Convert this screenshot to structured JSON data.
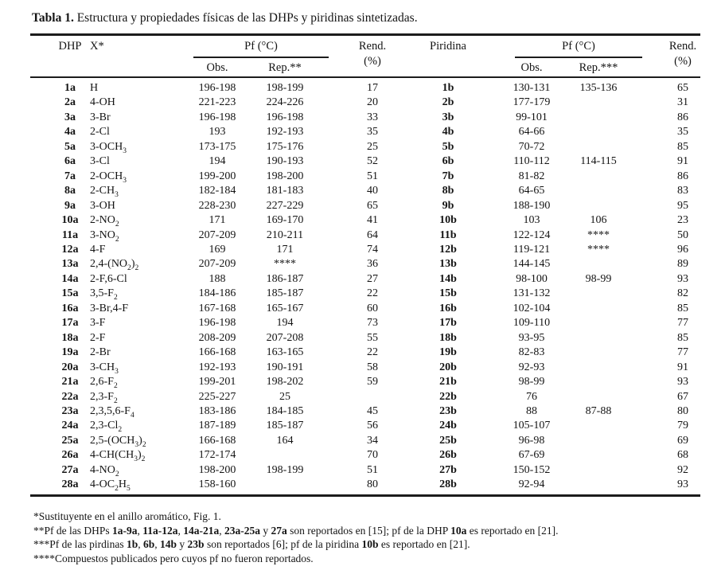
{
  "title": {
    "label": "Tabla 1.",
    "text": " Estructura y propiedades físicas de las DHPs y piridinas sintetizadas."
  },
  "header": {
    "dhp": "DHP",
    "x": "X*",
    "pf": "Pf (°C)",
    "rend": "Rend.",
    "pct": "(%)",
    "piridina": "Piridina",
    "obs": "Obs.",
    "rep_dhp": "Rep.**",
    "rep_pyr": "Rep.***"
  },
  "rows": [
    {
      "dhp": "1a",
      "x": "H",
      "obs": "196-198",
      "rep": "198-199",
      "rend": "17",
      "pyr": "1b",
      "pyr_obs": "130-131",
      "pyr_rep": "135-136",
      "pyr_rend": "65"
    },
    {
      "dhp": "2a",
      "x": "4-OH",
      "obs": "221-223",
      "rep": "224-226",
      "rend": "20",
      "pyr": "2b",
      "pyr_obs": "177-179",
      "pyr_rep": "",
      "pyr_rend": "31"
    },
    {
      "dhp": "3a",
      "x": "3-Br",
      "obs": "196-198",
      "rep": "196-198",
      "rend": "33",
      "pyr": "3b",
      "pyr_obs": "99-101",
      "pyr_rep": "",
      "pyr_rend": "86"
    },
    {
      "dhp": "4a",
      "x": "2-Cl",
      "obs": "193",
      "rep": "192-193",
      "rend": "35",
      "pyr": "4b",
      "pyr_obs": "64-66",
      "pyr_rep": "",
      "pyr_rend": "35"
    },
    {
      "dhp": "5a",
      "x": "3-OCH_3_",
      "obs": "173-175",
      "rep": "175-176",
      "rend": "25",
      "pyr": "5b",
      "pyr_obs": "70-72",
      "pyr_rep": "",
      "pyr_rend": "85"
    },
    {
      "dhp": "6a",
      "x": "3-Cl",
      "obs": "194",
      "rep": "190-193",
      "rend": "52",
      "pyr": "6b",
      "pyr_obs": "110-112",
      "pyr_rep": "114-115",
      "pyr_rend": "91"
    },
    {
      "dhp": "7a",
      "x": "2-OCH_3_",
      "obs": "199-200",
      "rep": "198-200",
      "rend": "51",
      "pyr": "7b",
      "pyr_obs": "81-82",
      "pyr_rep": "",
      "pyr_rend": "86"
    },
    {
      "dhp": "8a",
      "x": "2-CH_3_",
      "obs": "182-184",
      "rep": "181-183",
      "rend": "40",
      "pyr": "8b",
      "pyr_obs": "64-65",
      "pyr_rep": "",
      "pyr_rend": "83"
    },
    {
      "dhp": "9a",
      "x": "3-OH",
      "obs": "228-230",
      "rep": "227-229",
      "rend": "65",
      "pyr": "9b",
      "pyr_obs": "188-190",
      "pyr_rep": "",
      "pyr_rend": "95"
    },
    {
      "dhp": "10a",
      "x": "2-NO_2_",
      "obs": "171",
      "rep": "169-170",
      "rend": "41",
      "pyr": "10b",
      "pyr_obs": "103",
      "pyr_rep": "106",
      "pyr_rend": "23"
    },
    {
      "dhp": "11a",
      "x": "3-NO_2_",
      "obs": "207-209",
      "rep": "210-211",
      "rend": "64",
      "pyr": "11b",
      "pyr_obs": "122-124",
      "pyr_rep": "****",
      "pyr_rend": "50"
    },
    {
      "dhp": "12a",
      "x": "4-F",
      "obs": "169",
      "rep": "171",
      "rend": "74",
      "pyr": "12b",
      "pyr_obs": "119-121",
      "pyr_rep": "****",
      "pyr_rend": "96"
    },
    {
      "dhp": "13a",
      "x": "2,4-(NO_2_)_2_",
      "obs": "207-209",
      "rep": "****",
      "rend": "36",
      "pyr": "13b",
      "pyr_obs": "144-145",
      "pyr_rep": "",
      "pyr_rend": "89"
    },
    {
      "dhp": "14a",
      "x": "2-F,6-Cl",
      "obs": "188",
      "rep": "186-187",
      "rend": "27",
      "pyr": "14b",
      "pyr_obs": "98-100",
      "pyr_rep": "98-99",
      "pyr_rend": "93"
    },
    {
      "dhp": "15a",
      "x": "3,5-F_2_",
      "obs": "184-186",
      "rep": "185-187",
      "rend": "22",
      "pyr": "15b",
      "pyr_obs": "131-132",
      "pyr_rep": "",
      "pyr_rend": "82"
    },
    {
      "dhp": "16a",
      "x": "3-Br,4-F",
      "obs": "167-168",
      "rep": "165-167",
      "rend": "60",
      "pyr": "16b",
      "pyr_obs": "102-104",
      "pyr_rep": "",
      "pyr_rend": "85"
    },
    {
      "dhp": "17a",
      "x": "3-F",
      "obs": "196-198",
      "rep": "194",
      "rend": "73",
      "pyr": "17b",
      "pyr_obs": "109-110",
      "pyr_rep": "",
      "pyr_rend": "77"
    },
    {
      "dhp": "18a",
      "x": "2-F",
      "obs": "208-209",
      "rep": "207-208",
      "rend": "55",
      "pyr": "18b",
      "pyr_obs": "93-95",
      "pyr_rep": "",
      "pyr_rend": "85"
    },
    {
      "dhp": "19a",
      "x": "2-Br",
      "obs": "166-168",
      "rep": "163-165",
      "rend": "22",
      "pyr": "19b",
      "pyr_obs": "82-83",
      "pyr_rep": "",
      "pyr_rend": "77"
    },
    {
      "dhp": "20a",
      "x": "3-CH_3_",
      "obs": "192-193",
      "rep": "190-191",
      "rend": "58",
      "pyr": "20b",
      "pyr_obs": "92-93",
      "pyr_rep": "",
      "pyr_rend": "91"
    },
    {
      "dhp": "21a",
      "x": "2,6-F_2_",
      "obs": "199-201",
      "rep": "198-202",
      "rend": "59",
      "pyr": "21b",
      "pyr_obs": "98-99",
      "pyr_rep": "",
      "pyr_rend": "93"
    },
    {
      "dhp": "22a",
      "x": "2,3-F_2_",
      "obs": "225-227",
      "rep": "25",
      "rend": "",
      "pyr": "22b",
      "pyr_obs": "76",
      "pyr_rep": "",
      "pyr_rend": "67"
    },
    {
      "dhp": "23a",
      "x": "2,3,5,6-F_4_",
      "obs": "183-186",
      "rep": "184-185",
      "rend": "45",
      "pyr": "23b",
      "pyr_obs": "88",
      "pyr_rep": "87-88",
      "pyr_rend": "80"
    },
    {
      "dhp": "24a",
      "x": "2,3-Cl_2_",
      "obs": "187-189",
      "rep": "185-187",
      "rend": "56",
      "pyr": "24b",
      "pyr_obs": "105-107",
      "pyr_rep": "",
      "pyr_rend": "79"
    },
    {
      "dhp": "25a",
      "x": "2,5-(OCH_3_)_2_",
      "obs": "166-168",
      "rep": "164",
      "rend": "34",
      "pyr": "25b",
      "pyr_obs": "96-98",
      "pyr_rep": "",
      "pyr_rend": "69"
    },
    {
      "dhp": "26a",
      "x": "4-CH(CH_3_)_2_",
      "obs": "172-174",
      "rep": "",
      "rend": "70",
      "pyr": "26b",
      "pyr_obs": "67-69",
      "pyr_rep": "",
      "pyr_rend": "68"
    },
    {
      "dhp": "27a",
      "x": "4-NO_2_",
      "obs": "198-200",
      "rep": "198-199",
      "rend": "51",
      "pyr": "27b",
      "pyr_obs": "150-152",
      "pyr_rep": "",
      "pyr_rend": "92"
    },
    {
      "dhp": "28a",
      "x": "4-OC_2_H_5_",
      "obs": "158-160",
      "rep": "",
      "rend": "80",
      "pyr": "28b",
      "pyr_obs": "92-94",
      "pyr_rep": "",
      "pyr_rend": "93"
    }
  ],
  "footnotes": [
    "*Sustituyente en el anillo aromático, Fig. 1.",
    "**Pf de las DHPs {1a-9a}, {11a-12a}, {14a-21a}, {23a-25a} y {27a} son reportados en [15]; pf de la DHP {10a} es reportado en [21].",
    "***Pf de las pirdinas {1b}, {6b}, {14b} y {23b} son reportados [6]; pf de la piridina {10b} es reportado en [21].",
    "****Compuestos publicados pero cuyos pf no fueron reportados."
  ]
}
